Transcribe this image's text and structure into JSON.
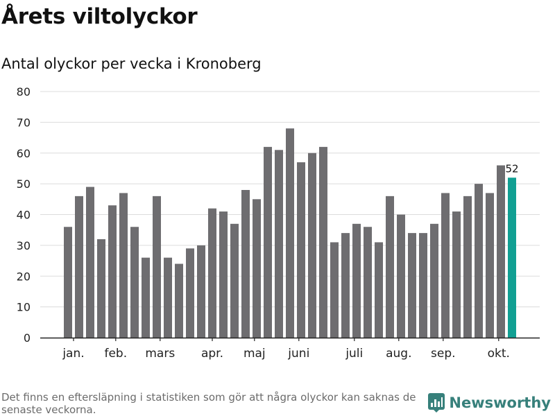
{
  "header": {
    "title": "Årets viltolyckor",
    "subtitle": "Antal olyckor per vecka i Kronoberg"
  },
  "footer": {
    "note": "Det finns en eftersläpning i statistiken som gör att några olyckor kan saknas de senaste veckorna.",
    "brand": "Newsworthy",
    "brand_icon": "newsworthy-logo-icon"
  },
  "colors": {
    "bar": "#6e6d70",
    "highlight": "#11a093",
    "grid": "#dcdcdc",
    "axis": "#222222",
    "brand": "#37807b"
  },
  "chart_data": {
    "type": "bar",
    "title": "Årets viltolyckor",
    "subtitle": "Antal olyckor per vecka i Kronoberg",
    "ylim": [
      0,
      80
    ],
    "yticks": [
      0,
      10,
      20,
      30,
      40,
      50,
      60,
      70,
      80
    ],
    "grid": true,
    "values": [
      36,
      46,
      49,
      32,
      43,
      47,
      36,
      26,
      46,
      26,
      24,
      29,
      30,
      42,
      41,
      37,
      48,
      45,
      62,
      61,
      68,
      57,
      60,
      62,
      31,
      34,
      37,
      36,
      31,
      46,
      40,
      34,
      34,
      37,
      47,
      41,
      46,
      50,
      47,
      56,
      52
    ],
    "highlight_index": 40,
    "highlight_label": "52",
    "month_labels": [
      {
        "label": "jan.",
        "at": 0.5
      },
      {
        "label": "feb.",
        "at": 4.3
      },
      {
        "label": "mars",
        "at": 8.3
      },
      {
        "label": "apr.",
        "at": 13.0
      },
      {
        "label": "maj",
        "at": 16.8
      },
      {
        "label": "juni",
        "at": 20.8
      },
      {
        "label": "juli",
        "at": 25.8
      },
      {
        "label": "aug.",
        "at": 29.8
      },
      {
        "label": "sep.",
        "at": 33.8
      },
      {
        "label": "okt.",
        "at": 38.8
      }
    ]
  }
}
